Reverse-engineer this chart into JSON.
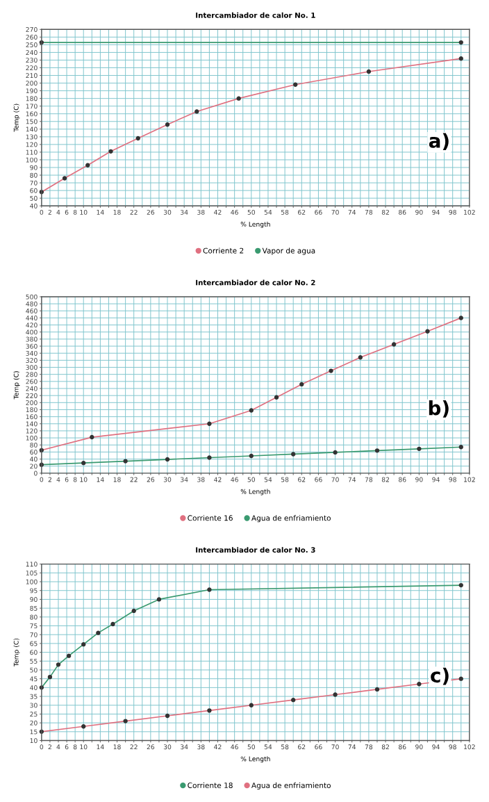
{
  "chart_data": [
    {
      "type": "line",
      "title": "Intercambiador de calor No. 1",
      "xlabel": "% Length",
      "ylabel": "Temp (C)",
      "annotations": [
        "a)"
      ],
      "marker": "circle",
      "legend": "bottom",
      "grid": true,
      "xlim": [
        0,
        102
      ],
      "xticks": [
        0,
        2,
        4,
        6,
        8,
        10,
        {
          "value": 12,
          "label": null
        },
        14,
        {
          "value": 16,
          "label": null
        },
        18,
        {
          "value": 20,
          "label": null
        },
        22,
        {
          "value": 24,
          "label": null
        },
        26,
        {
          "value": 28,
          "label": null
        },
        30,
        {
          "value": 32,
          "label": null
        },
        34,
        {
          "value": 36,
          "label": null
        },
        38,
        {
          "value": 40,
          "label": null
        },
        42,
        {
          "value": 44,
          "label": null
        },
        46,
        {
          "value": 48,
          "label": null
        },
        50,
        {
          "value": 52,
          "label": null
        },
        54,
        {
          "value": 56,
          "label": null
        },
        58,
        {
          "value": 60,
          "label": null
        },
        62,
        {
          "value": 64,
          "label": null
        },
        66,
        {
          "value": 68,
          "label": null
        },
        70,
        {
          "value": 72,
          "label": null
        },
        74,
        {
          "value": 76,
          "label": null
        },
        78,
        {
          "value": 80,
          "label": null
        },
        82,
        {
          "value": 84,
          "label": null
        },
        86,
        {
          "value": 88,
          "label": null
        },
        90,
        {
          "value": 92,
          "label": null
        },
        94,
        {
          "value": 96,
          "label": null
        },
        98,
        {
          "value": 100,
          "label": null
        },
        102
      ],
      "ylim": [
        40,
        270
      ],
      "yticks": [
        40,
        50,
        60,
        70,
        80,
        90,
        100,
        110,
        120,
        130,
        140,
        150,
        160,
        170,
        180,
        190,
        200,
        210,
        220,
        230,
        240,
        250,
        260,
        270
      ],
      "series": [
        {
          "name": "Corriente 2",
          "color": "#e07080",
          "x": [
            0,
            5.5,
            11,
            16.5,
            23,
            30,
            37,
            47,
            60.5,
            78,
            100
          ],
          "values": [
            58,
            76,
            93,
            111,
            128,
            146,
            163,
            180,
            198,
            215,
            232
          ]
        },
        {
          "name": "Vapor de agua",
          "color": "#3a9a70",
          "x": [
            0,
            100
          ],
          "values": [
            253,
            253
          ]
        }
      ]
    },
    {
      "type": "line",
      "title": "Intercambiador de calor No. 2",
      "xlabel": "% Length",
      "ylabel": "Temp (C)",
      "annotations": [
        "b)"
      ],
      "marker": "circle",
      "legend": "bottom",
      "grid": true,
      "xlim": [
        0,
        102
      ],
      "xticks": [
        0,
        2,
        4,
        6,
        8,
        10,
        {
          "value": 12,
          "label": null
        },
        14,
        {
          "value": 16,
          "label": null
        },
        18,
        {
          "value": 20,
          "label": null
        },
        22,
        {
          "value": 24,
          "label": null
        },
        26,
        {
          "value": 28,
          "label": null
        },
        30,
        {
          "value": 32,
          "label": null
        },
        34,
        {
          "value": 36,
          "label": null
        },
        38,
        {
          "value": 40,
          "label": null
        },
        42,
        {
          "value": 44,
          "label": null
        },
        46,
        {
          "value": 48,
          "label": null
        },
        50,
        {
          "value": 52,
          "label": null
        },
        54,
        {
          "value": 56,
          "label": null
        },
        58,
        {
          "value": 60,
          "label": null
        },
        62,
        {
          "value": 64,
          "label": null
        },
        66,
        {
          "value": 68,
          "label": null
        },
        70,
        {
          "value": 72,
          "label": null
        },
        74,
        {
          "value": 76,
          "label": null
        },
        78,
        {
          "value": 80,
          "label": null
        },
        82,
        {
          "value": 84,
          "label": null
        },
        86,
        {
          "value": 88,
          "label": null
        },
        90,
        {
          "value": 92,
          "label": null
        },
        94,
        {
          "value": 96,
          "label": null
        },
        98,
        {
          "value": 100,
          "label": null
        },
        102
      ],
      "ylim": [
        0,
        500
      ],
      "yticks": [
        0,
        20,
        40,
        60,
        80,
        100,
        120,
        140,
        160,
        180,
        200,
        220,
        240,
        260,
        280,
        300,
        320,
        340,
        360,
        380,
        400,
        420,
        440,
        460,
        480,
        500
      ],
      "series": [
        {
          "name": "Corriente 16",
          "color": "#e07080",
          "x": [
            0,
            12,
            40,
            50,
            56,
            62,
            69,
            76,
            84,
            92,
            100
          ],
          "values": [
            65,
            102,
            140,
            178,
            215,
            252,
            290,
            328,
            365,
            402,
            440
          ]
        },
        {
          "name": "Agua de enfriamiento",
          "color": "#3a9a70",
          "x": [
            0,
            10,
            20,
            30,
            40,
            50,
            60,
            70,
            80,
            90,
            100
          ],
          "values": [
            24,
            29,
            34,
            39,
            44,
            49,
            54,
            59,
            64,
            69,
            74
          ]
        }
      ]
    },
    {
      "type": "line",
      "title": "Intercambiador de calor No. 3",
      "xlabel": "% Length",
      "ylabel": "Temp (C)",
      "annotations": [
        "c)"
      ],
      "marker": "circle",
      "legend": "bottom",
      "grid": true,
      "xlim": [
        0,
        102
      ],
      "xticks": [
        0,
        2,
        4,
        6,
        8,
        10,
        {
          "value": 12,
          "label": null
        },
        14,
        {
          "value": 16,
          "label": null
        },
        18,
        {
          "value": 20,
          "label": null
        },
        22,
        {
          "value": 24,
          "label": null
        },
        26,
        {
          "value": 28,
          "label": null
        },
        30,
        {
          "value": 32,
          "label": null
        },
        34,
        {
          "value": 36,
          "label": null
        },
        38,
        {
          "value": 40,
          "label": null
        },
        42,
        {
          "value": 44,
          "label": null
        },
        46,
        {
          "value": 48,
          "label": null
        },
        50,
        {
          "value": 52,
          "label": null
        },
        54,
        {
          "value": 56,
          "label": null
        },
        58,
        {
          "value": 60,
          "label": null
        },
        62,
        {
          "value": 64,
          "label": null
        },
        66,
        {
          "value": 68,
          "label": null
        },
        70,
        {
          "value": 72,
          "label": null
        },
        74,
        {
          "value": 76,
          "label": null
        },
        78,
        {
          "value": 80,
          "label": null
        },
        82,
        {
          "value": 84,
          "label": null
        },
        86,
        {
          "value": 88,
          "label": null
        },
        90,
        {
          "value": 92,
          "label": null
        },
        94,
        {
          "value": 96,
          "label": null
        },
        98,
        {
          "value": 100,
          "label": null
        },
        102
      ],
      "ylim": [
        10,
        110
      ],
      "yticks": [
        10,
        15,
        20,
        25,
        30,
        35,
        40,
        45,
        50,
        55,
        60,
        65,
        70,
        75,
        80,
        85,
        90,
        95,
        100,
        105,
        110
      ],
      "series": [
        {
          "name": "Corriente 18",
          "color": "#3a9a70",
          "x": [
            0,
            2,
            4,
            6.5,
            10,
            13.5,
            17,
            22,
            28,
            40,
            100
          ],
          "values": [
            40,
            46,
            53,
            58,
            64.5,
            71,
            76,
            83.5,
            90,
            95.5,
            98
          ]
        },
        {
          "name": "Agua de enfriamiento",
          "color": "#e07080",
          "x": [
            0,
            10,
            20,
            30,
            40,
            50,
            60,
            70,
            80,
            90,
            100
          ],
          "values": [
            15,
            18,
            21,
            24,
            27,
            30,
            33,
            36,
            39,
            42,
            45
          ]
        }
      ]
    }
  ]
}
